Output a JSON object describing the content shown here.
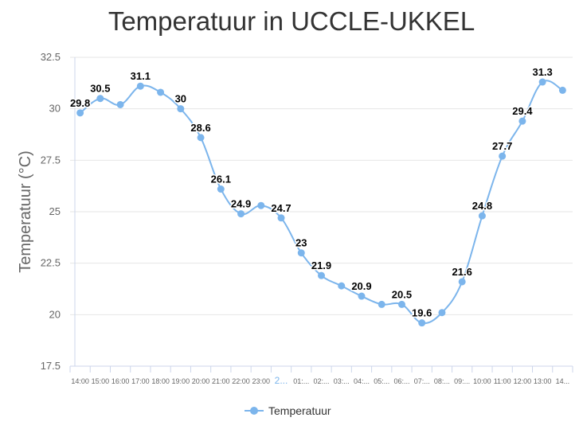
{
  "chart_data": {
    "type": "line",
    "title": "Temperatuur in UCCLE-UKKEL",
    "xlabel": "",
    "ylabel": "Temperatuur (°C)",
    "ylim": [
      17.5,
      32.5
    ],
    "yticks": [
      "17.5",
      "20",
      "22.5",
      "25",
      "27.5",
      "30",
      "32.5"
    ],
    "grid": true,
    "legend_position": "bottom-center",
    "categories": [
      "14:00",
      "15:00",
      "16:00",
      "17:00",
      "18:00",
      "19:00",
      "20:00",
      "21:00",
      "22:00",
      "23:00",
      "2...",
      "01:...",
      "02:...",
      "03:...",
      "04:...",
      "05:...",
      "06:...",
      "07:...",
      "08:...",
      "09:...",
      "10:00",
      "11:00",
      "12:00",
      "13:00",
      "14..."
    ],
    "highlighted_category": "2...",
    "series": [
      {
        "name": "Temperatuur",
        "color": "#7cb5ec",
        "values": [
          29.8,
          30.5,
          30.2,
          31.1,
          30.8,
          30,
          28.6,
          26.1,
          24.9,
          25.3,
          24.7,
          23,
          21.9,
          21.4,
          20.9,
          20.5,
          20.5,
          19.6,
          20.1,
          21.6,
          24.8,
          27.7,
          29.4,
          31.3,
          30.9
        ],
        "data_labels": [
          "29.8",
          "30.5",
          null,
          "31.1",
          null,
          "30",
          "28.6",
          "26.1",
          "24.9",
          null,
          "24.7",
          "23",
          "21.9",
          null,
          "20.9",
          null,
          "20.5",
          "19.6",
          null,
          "21.6",
          "24.8",
          "27.7",
          "29.4",
          "31.3",
          null
        ]
      }
    ]
  }
}
